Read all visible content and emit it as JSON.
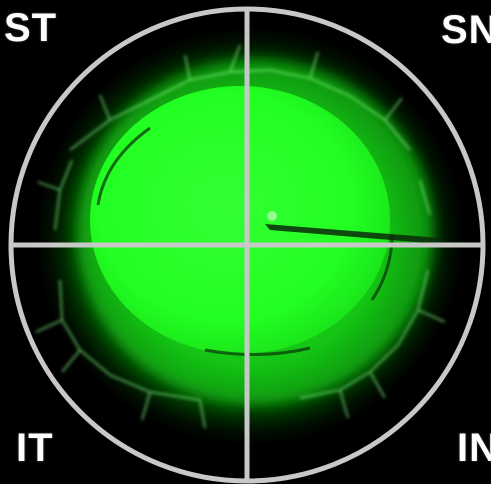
{
  "labels": {
    "superior_temporal": "ST",
    "superior_nasal": "SN",
    "inferior_temporal": "IT",
    "inferior_nasal": "IN"
  },
  "colors": {
    "background": "#000000",
    "stain_green": "#22ff22",
    "overlay_grid": "#c8c8c8",
    "label_text": "#ffffff"
  }
}
